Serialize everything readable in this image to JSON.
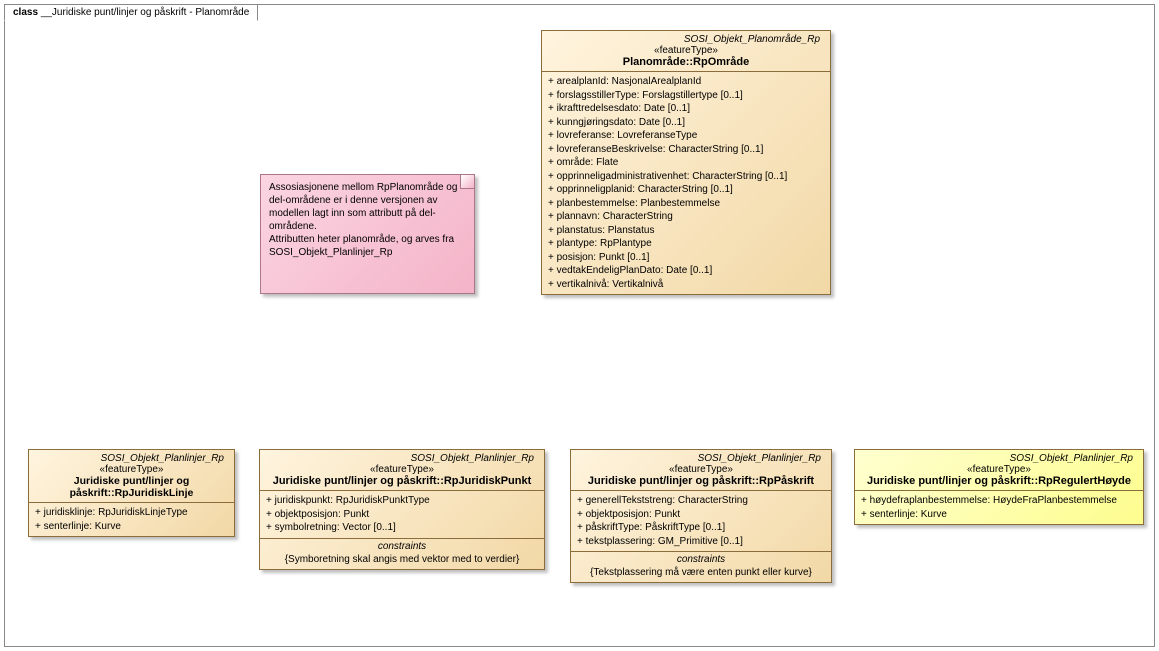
{
  "diagram": {
    "tab_prefix": "class ",
    "tab_title": "__Juridiske punt/linjer og påskrift - Planområde"
  },
  "note": {
    "text": "Assosiasjonene mellom RpPlanområde og del-områdene er i denne versjonen av modellen lagt inn som attributt på del-områdene.\nAttributten heter planområde, og arves fra SOSI_Objekt_Planlinjer_Rp"
  },
  "class_main": {
    "pkg": "SOSI_Objekt_Planområde_Rp",
    "stereo": "«featureType»",
    "title": "Planområde::RpOmråde",
    "attrs": [
      "+   arealplanId: NasjonalArealplanId",
      "+   forslagsstillerType: Forslagstillertype [0..1]",
      "+   ikrafttredelsesdato: Date [0..1]",
      "+   kunngjøringsdato: Date [0..1]",
      "+   lovreferanse: LovreferanseType",
      "+   lovreferanseBeskrivelse: CharacterString [0..1]",
      "+   område: Flate",
      "+   opprinneligadministrativenhet: CharacterString [0..1]",
      "+   opprinneligplanid: CharacterString [0..1]",
      "+   planbestemmelse: Planbestemmelse",
      "+   plannavn: CharacterString",
      "+   planstatus: Planstatus",
      "+   plantype: RpPlantype",
      "+   posisjon: Punkt [0..1]",
      "+   vedtakEndeligPlanDato: Date [0..1]",
      "+   vertikalnivå: Vertikalnivå"
    ]
  },
  "class_linje": {
    "pkg": "SOSI_Objekt_Planlinjer_Rp",
    "stereo": "«featureType»",
    "title": "Juridiske punt/linjer og påskrift::RpJuridiskLinje",
    "attrs": [
      "+   juridisklinje: RpJuridiskLinjeType",
      "+   senterlinje: Kurve"
    ]
  },
  "class_punkt": {
    "pkg": "SOSI_Objekt_Planlinjer_Rp",
    "stereo": "«featureType»",
    "title": "Juridiske punt/linjer og påskrift::RpJuridiskPunkt",
    "attrs": [
      "+   juridiskpunkt: RpJuridiskPunktType",
      "+   objektposisjon: Punkt",
      "+   symbolretning: Vector [0..1]"
    ],
    "constraints_label": "constraints",
    "constraints_text": "{Symboretning skal angis med vektor med to verdier}"
  },
  "class_paaskrift": {
    "pkg": "SOSI_Objekt_Planlinjer_Rp",
    "stereo": "«featureType»",
    "title": "Juridiske punt/linjer og påskrift::RpPåskrift",
    "attrs": [
      "+   generellTekststreng: CharacterString",
      "+   objektposisjon: Punkt",
      "+   påskriftType: PåskriftType [0..1]",
      "+   tekstplassering: GM_Primitive [0..1]"
    ],
    "constraints_label": "constraints",
    "constraints_text": "{Tekstplassering må være enten punkt eller kurve}"
  },
  "class_hoyde": {
    "pkg": "SOSI_Objekt_Planlinjer_Rp",
    "stereo": "«featureType»",
    "title": "Juridiske punt/linjer og påskrift::RpRegulertHøyde",
    "attrs": [
      "+   høydefraplanbestemmelse: HøydeFraPlanbestemmelse",
      "+   senterlinje: Kurve"
    ]
  }
}
